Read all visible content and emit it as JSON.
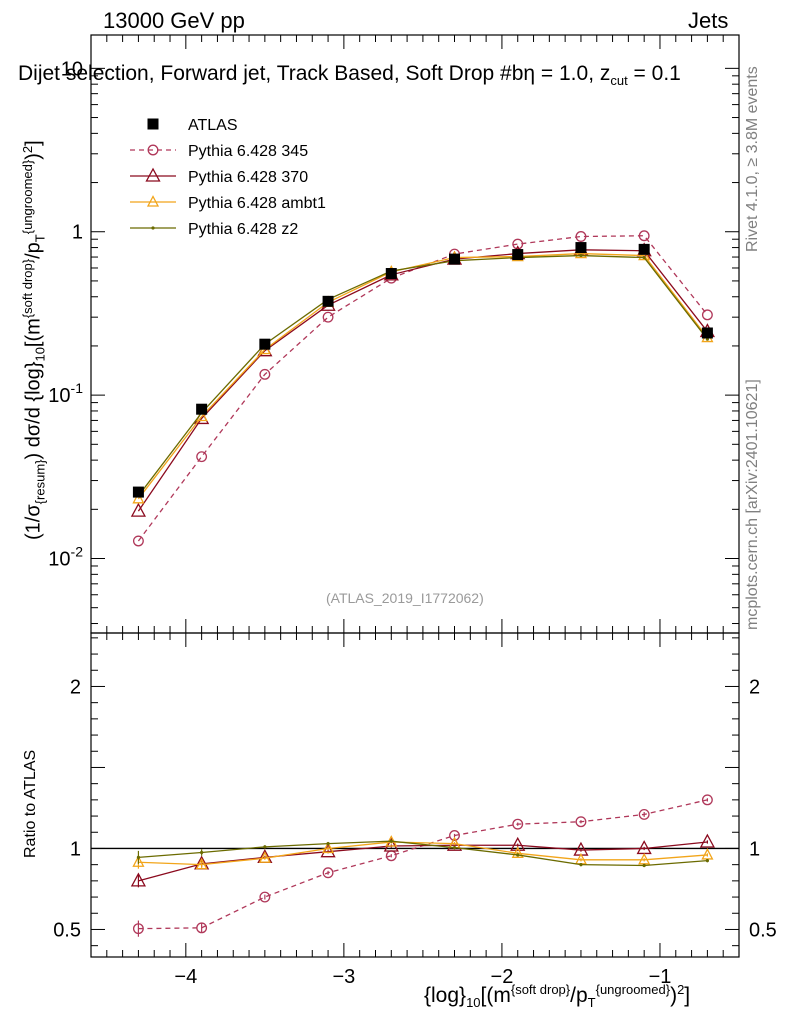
{
  "header": {
    "left_label": "13000 GeV pp",
    "right_label": "Jets"
  },
  "title": {
    "main": "Dijet selection, Forward jet, Track Based, Soft Drop #b",
    "suffix_eta": "η = 1.0, z",
    "suffix_cut_sub": "cut",
    "suffix_tail": " = 0.1"
  },
  "side_labels": {
    "rivet": "Rivet 4.1.0, ≥ 3.8M events",
    "mcplots": "mcplots.cern.ch [arXiv:2401.10621]"
  },
  "watermark": "(ATLAS_2019_I1772062)",
  "axes": {
    "ylabel_top": "(1/σ_{resum}) dσ/d {log}_{10}[(m^{soft drop}/p_T^{ungroomed})^2]",
    "ylabel_ratio": "Ratio to ATLAS",
    "xlabel": "{log}_{10}[(m^{soft drop}/p_T^{ungroomed})^2]"
  },
  "chart_data": [
    {
      "type": "line",
      "panel": "main",
      "yscale": "log",
      "xlim": [
        -4.6,
        -0.5
      ],
      "ylim": [
        0.0035,
        16
      ],
      "y_tick_labels": [
        "10^{-2}",
        "10^{-1}",
        "1",
        "10"
      ],
      "x": [
        -4.3,
        -3.9,
        -3.5,
        -3.1,
        -2.7,
        -2.3,
        -1.9,
        -1.5,
        -1.1,
        -0.7
      ],
      "series": [
        {
          "name": "ATLAS",
          "color": "#000000",
          "values": [
            0.0255,
            0.082,
            0.205,
            0.375,
            0.555,
            0.68,
            0.725,
            0.8,
            0.78,
            0.24
          ],
          "errors": [
            0.001,
            0.003,
            0.006,
            0.01,
            0.012,
            0.012,
            0.013,
            0.014,
            0.02,
            0.008
          ]
        },
        {
          "name": "Pythia 6.428 345",
          "color": "#b0385a",
          "values": [
            0.0128,
            0.042,
            0.134,
            0.3,
            0.52,
            0.73,
            0.84,
            0.935,
            0.945,
            0.31
          ]
        },
        {
          "name": "Pythia 6.428 370",
          "color": "#8b0a1e",
          "values": [
            0.0195,
            0.072,
            0.187,
            0.355,
            0.545,
            0.68,
            0.735,
            0.775,
            0.765,
            0.245
          ]
        },
        {
          "name": "Pythia 6.428 ambt1",
          "color": "#f2a51a",
          "values": [
            0.0232,
            0.074,
            0.19,
            0.37,
            0.568,
            0.695,
            0.705,
            0.735,
            0.715,
            0.225
          ]
        },
        {
          "name": "Pythia 6.428 z2",
          "color": "#6b6b00",
          "values": [
            0.0242,
            0.078,
            0.205,
            0.385,
            0.575,
            0.665,
            0.695,
            0.715,
            0.695,
            0.22
          ]
        }
      ]
    },
    {
      "type": "line",
      "panel": "ratio",
      "yscale": "linear",
      "xlim": [
        -4.6,
        -0.5
      ],
      "ylim": [
        0.33,
        2.33
      ],
      "x_tick_labels": [
        "−4",
        "−3",
        "−2",
        "−1"
      ],
      "y_tick_labels": [
        "0.5",
        "1",
        "2"
      ],
      "x": [
        -4.3,
        -3.9,
        -3.5,
        -3.1,
        -2.7,
        -2.3,
        -1.9,
        -1.5,
        -1.1,
        -0.7
      ],
      "series": [
        {
          "name": "Pythia 6.428 345",
          "color": "#b0385a",
          "values": [
            0.505,
            0.51,
            0.7,
            0.85,
            0.955,
            1.08,
            1.15,
            1.165,
            1.21,
            1.3
          ],
          "errors": [
            0.05,
            0.03,
            0.015,
            0.012,
            0.01,
            0.01,
            0.01,
            0.01,
            0.015,
            0.01
          ]
        },
        {
          "name": "Pythia 6.428 370",
          "color": "#8b0a1e",
          "values": [
            0.8,
            0.905,
            0.945,
            0.98,
            1.015,
            1.02,
            1.02,
            0.99,
            1.0,
            1.04
          ],
          "errors": [
            0.04,
            0.02,
            0.01,
            0.01,
            0.01,
            0.01,
            0.01,
            0.01,
            0.01,
            0.01
          ]
        },
        {
          "name": "Pythia 6.428 ambt1",
          "color": "#f2a51a",
          "values": [
            0.915,
            0.9,
            0.94,
            1.0,
            1.04,
            1.03,
            0.97,
            0.93,
            0.93,
            0.96
          ],
          "errors": [
            0.04,
            0.02,
            0.01,
            0.01,
            0.01,
            0.01,
            0.01,
            0.01,
            0.01,
            0.01
          ]
        },
        {
          "name": "Pythia 6.428 z2",
          "color": "#6b6b00",
          "values": [
            0.945,
            0.975,
            1.01,
            1.03,
            1.045,
            1.005,
            0.96,
            0.9,
            0.895,
            0.925
          ],
          "errors": [
            0.04,
            0.02,
            0.01,
            0.01,
            0.01,
            0.01,
            0.01,
            0.01,
            0.01,
            0.01
          ]
        }
      ]
    }
  ]
}
